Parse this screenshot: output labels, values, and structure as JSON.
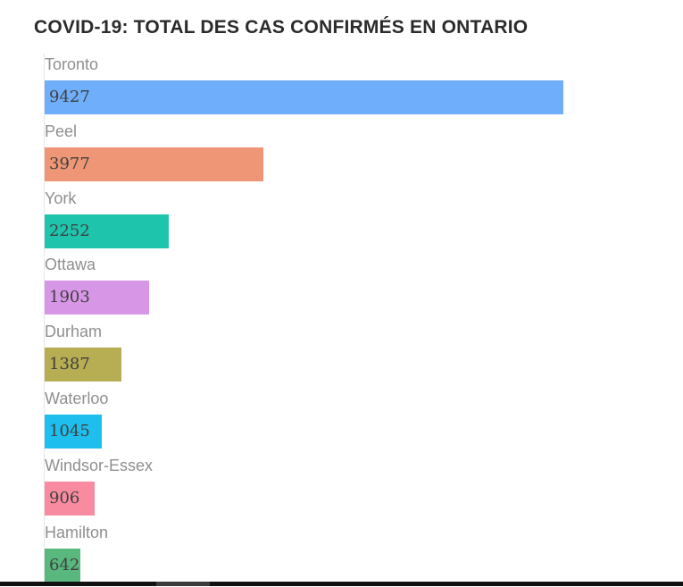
{
  "chart_data": {
    "type": "bar",
    "title": "COVID-19: TOTAL DES CAS CONFIRMÉS EN ONTARIO",
    "orientation": "horizontal",
    "categories": [
      "Toronto",
      "Peel",
      "York",
      "Ottawa",
      "Durham",
      "Waterloo",
      "Windsor-Essex",
      "Hamilton"
    ],
    "values": [
      9427,
      3977,
      2252,
      1903,
      1387,
      1045,
      906,
      642
    ],
    "colors": [
      "#6eaefb",
      "#ee9675",
      "#1fc4ad",
      "#d896e6",
      "#b7ad52",
      "#1ebfee",
      "#f98ba1",
      "#58b87e"
    ],
    "xlim": [
      0,
      10700
    ],
    "grid": false,
    "legend": "none"
  }
}
